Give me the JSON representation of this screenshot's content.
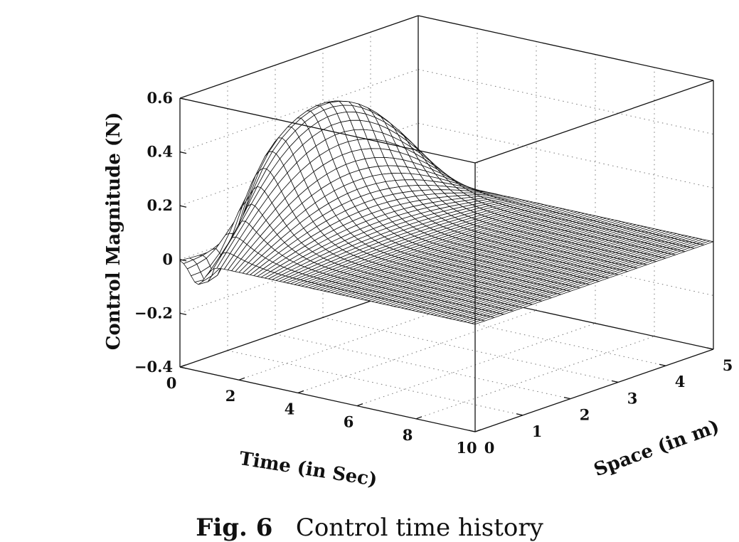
{
  "chart_data": {
    "type": "surface",
    "title": "",
    "xlabel": "Time (in Sec)",
    "ylabel": "Space (in m)",
    "zlabel": "Control Magnitude (N)",
    "xlim": [
      0,
      10
    ],
    "ylim": [
      0,
      5
    ],
    "zlim": [
      -0.4,
      0.6
    ],
    "x_ticks": [
      "0",
      "2",
      "4",
      "6",
      "8",
      "10"
    ],
    "y_ticks": [
      "0",
      "1",
      "2",
      "3",
      "4",
      "5"
    ],
    "z_ticks": [
      "−0.4",
      "−0.2",
      "0",
      "0.2",
      "0.4",
      "0.6"
    ],
    "grid": true,
    "z_peak": 0.6,
    "z_min": -0.2
  },
  "caption": {
    "label": "Fig. 6",
    "text": "Control time history"
  }
}
